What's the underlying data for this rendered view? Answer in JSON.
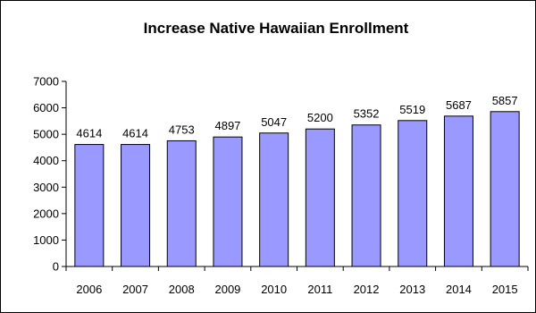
{
  "chart_data": {
    "type": "bar",
    "title": "Increase Native Hawaiian Enrollment",
    "xlabel": "",
    "ylabel": "",
    "categories": [
      "2006",
      "2007",
      "2008",
      "2009",
      "2010",
      "2011",
      "2012",
      "2013",
      "2014",
      "2015"
    ],
    "values": [
      4614,
      4614,
      4753,
      4897,
      5047,
      5200,
      5352,
      5519,
      5687,
      5857
    ],
    "data_labels": [
      "4614",
      "4614",
      "4753",
      "4897",
      "5047",
      "5200",
      "5352",
      "5519",
      "5687",
      "5857"
    ],
    "yticks": [
      0,
      1000,
      2000,
      3000,
      4000,
      5000,
      6000,
      7000
    ],
    "ytick_labels": [
      "0",
      "1000",
      "2000",
      "3000",
      "4000",
      "5000",
      "6000",
      "7000"
    ],
    "ylim": [
      0,
      7000
    ],
    "grid": false,
    "legend": "none",
    "colors": {
      "bar_fill": "#9999FF",
      "bar_stroke": "#000000",
      "axis": "#000000"
    }
  }
}
